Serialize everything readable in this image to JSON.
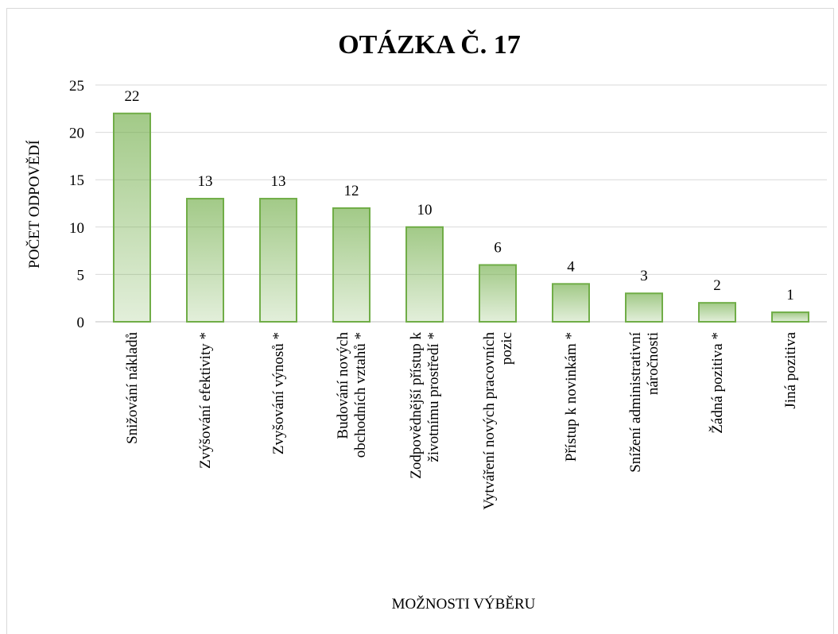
{
  "chart_data": {
    "type": "bar",
    "title": "OTÁZKA Č. 17",
    "y_label": "POČET ODPOVĚDÍ",
    "x_label": "MOŽNOSTI VÝBĚRU",
    "categories": [
      "Snižování nákladů",
      "Zvýšování efektivity *",
      "Zvyšování výnosů *",
      "Budování nových\nobchodních vztahů *",
      "Zodpovědnější přístup k\nživotnímu prostředí *",
      "Vytváření nových pracovních\npozic",
      "Přístup k novinkám *",
      "Snížení administrativní\nnáročnosti",
      "Žádná pozitiva *",
      "Jiná pozitiva"
    ],
    "values": [
      22,
      13,
      13,
      12,
      10,
      6,
      4,
      3,
      2,
      1
    ],
    "color": "#70ad47",
    "ylim": [
      0,
      25
    ],
    "yticks": [
      0,
      5,
      10,
      15,
      20,
      25
    ],
    "grid": true
  }
}
